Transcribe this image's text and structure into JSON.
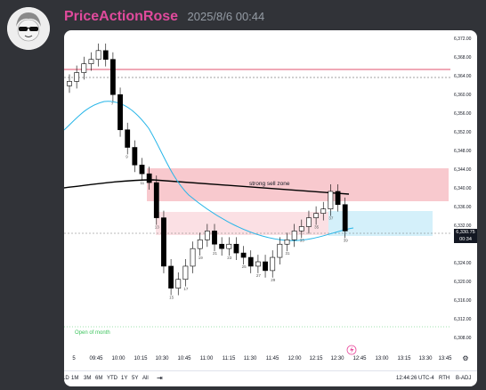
{
  "message": {
    "username": "PriceActionRose",
    "timestamp": "2025/8/6 00:44",
    "username_color": "#e04a9c"
  },
  "avatar": {
    "icon": "avatar-face-with-sunglasses-icon"
  },
  "chart": {
    "price_tag": {
      "price": "6,330.75",
      "countdown": "00:34"
    },
    "labels": {
      "strong_sell_zone": "strong sell zone",
      "open_of_month": "Open of month"
    },
    "price_ticks": [
      "6,372.00",
      "6,368.00",
      "6,364.00",
      "6,360.00",
      "6,356.00",
      "6,352.00",
      "6,348.00",
      "6,344.00",
      "6,340.00",
      "6,336.00",
      "6,332.00",
      "6,328.00",
      "6,324.00",
      "6,320.00",
      "6,316.00",
      "6,312.00",
      "6,308.00"
    ],
    "time_ticks": [
      "5",
      "09:45",
      "10:00",
      "10:15",
      "10:30",
      "10:45",
      "11:00",
      "11:15",
      "11:30",
      "11:45",
      "12:00",
      "12:15",
      "12:30",
      "12:45",
      "13:00",
      "13:15",
      "13:30",
      "13:45"
    ],
    "bar_numbers": [
      "7",
      "9",
      "11",
      "13",
      "15",
      "17",
      "19",
      "21",
      "23",
      "25",
      "27",
      "29",
      "31",
      "33",
      "35",
      "37",
      "39"
    ],
    "colors": {
      "bull": "#ffffff",
      "bear": "#000000",
      "ema": "#26b5e8",
      "vwap": "#000000",
      "sell_zone": "#f5aab3",
      "target_zone": "#cdeef8",
      "red_line": "#e0506e",
      "open_text": "#3ec45e"
    }
  },
  "toolbar": {
    "ranges": [
      "1D",
      "5D",
      "1M",
      "3M",
      "6M",
      "YTD",
      "1Y",
      "5Y",
      "All"
    ],
    "clock": "12:44:26 UTC-4",
    "session": "RTH",
    "adj": "B-ADJ",
    "settings_icon": "gear-icon"
  },
  "chart_data": {
    "type": "line",
    "title": "",
    "xlabel": "",
    "ylabel": "",
    "x": [
      "09:30",
      "09:35",
      "09:40",
      "09:45",
      "09:50",
      "09:55",
      "10:00",
      "10:05",
      "10:10",
      "10:15",
      "10:20",
      "10:25",
      "10:30",
      "10:35",
      "10:40",
      "10:45",
      "10:50",
      "10:55",
      "11:00",
      "11:05",
      "11:10",
      "11:15",
      "11:20",
      "11:25",
      "11:30",
      "11:35",
      "11:40",
      "11:45",
      "11:50",
      "11:55",
      "12:00",
      "12:05",
      "12:10",
      "12:15",
      "12:20",
      "12:25",
      "12:30",
      "12:35",
      "12:40"
    ],
    "series": [
      {
        "name": "",
        "values": [
          6364,
          6366,
          6368,
          6369,
          6371,
          6369,
          6361,
          6353,
          6349,
          6345,
          6343,
          6341,
          6333,
          6322,
          6317,
          6319,
          6322,
          6326,
          6328,
          6330,
          6327,
          6326,
          6327,
          6325,
          6324,
          6322,
          6323,
          6321,
          6324,
          6327,
          6328,
          6330,
          6331,
          6333,
          6334,
          6335,
          6339,
          6336,
          6330
        ]
      }
    ],
    "ylim": [
      6306,
      6374
    ],
    "grid": false,
    "legend": "none"
  }
}
